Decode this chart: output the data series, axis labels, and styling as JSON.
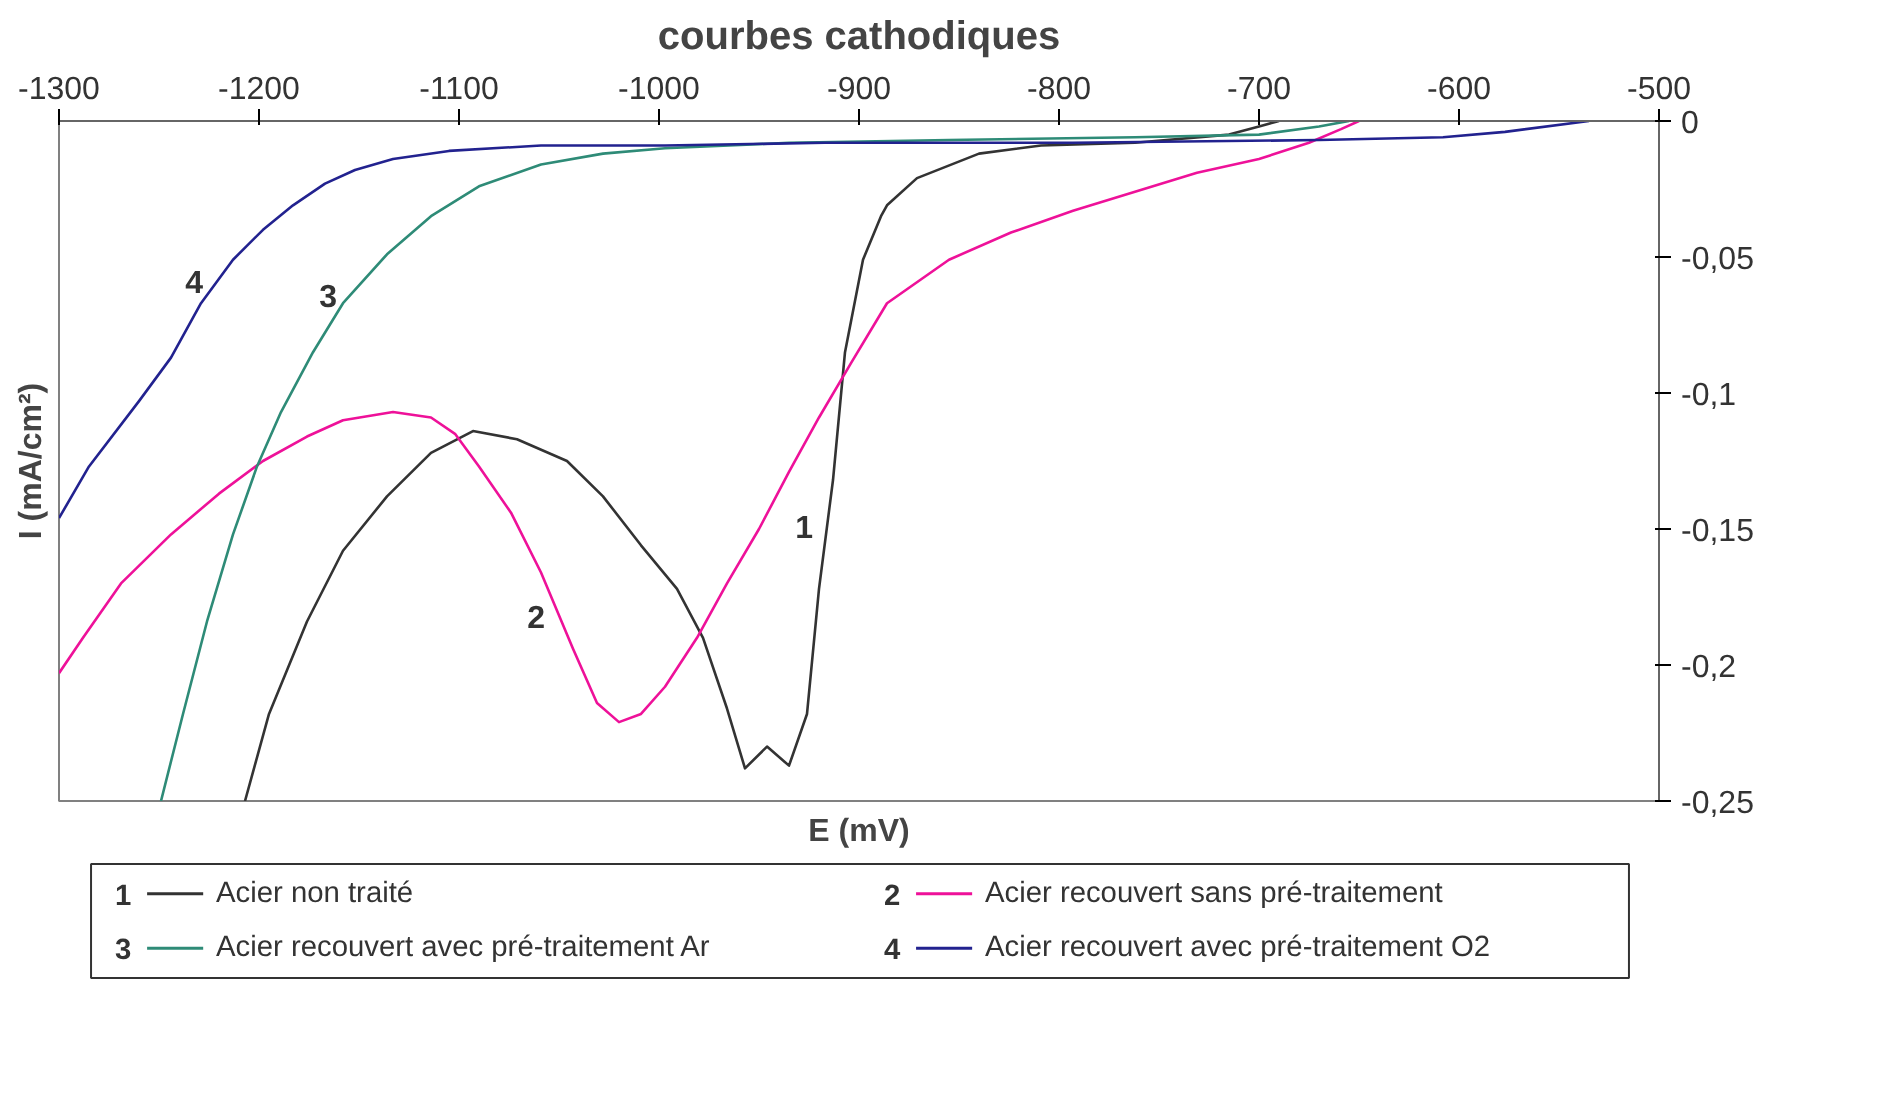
{
  "chart_data": {
    "type": "line",
    "title": "courbes cathodiques",
    "xlabel": "E (mV)",
    "ylabel": "I (mA/cm²)",
    "xlim": [
      -1300,
      -500
    ],
    "xticks": [
      -1300,
      -1200,
      -1100,
      -1000,
      -900,
      -800,
      -700,
      -600,
      -500
    ],
    "ylim": [
      -0.25,
      0
    ],
    "yticks": [
      0,
      {
        "value": -0.05,
        "label": "-0,05"
      },
      {
        "value": -0.1,
        "label": "-0,1"
      },
      {
        "value": -0.15,
        "label": "-0,15"
      },
      {
        "value": -0.2,
        "label": "-0,2"
      },
      {
        "value": -0.25,
        "label": "-0,25"
      }
    ],
    "grid": false,
    "legend": "bottom",
    "marker": "none",
    "line_style": "solid",
    "series": [
      {
        "name": "Acier non traité",
        "color": "#333333",
        "x": [
          -1207,
          -1195,
          -1176,
          -1158,
          -1136,
          -1114,
          -1093,
          -1071,
          -1046,
          -1028,
          -1009,
          -991,
          -978,
          -966,
          -957,
          -946,
          -935,
          -926,
          -920,
          -913,
          -907,
          -898,
          -889,
          -886,
          -871,
          -840,
          -809,
          -762,
          -715,
          -700,
          -690
        ],
        "values": [
          -0.25,
          -0.218,
          -0.184,
          -0.158,
          -0.138,
          -0.122,
          -0.114,
          -0.117,
          -0.125,
          -0.138,
          -0.156,
          -0.172,
          -0.19,
          -0.216,
          -0.238,
          -0.23,
          -0.237,
          -0.218,
          -0.172,
          -0.132,
          -0.085,
          -0.051,
          -0.035,
          -0.031,
          -0.021,
          -0.012,
          -0.009,
          -0.008,
          -0.005,
          -0.002,
          0
        ]
      },
      {
        "name": "Acier recouvert sans pré-traitement",
        "color": "#ee1199",
        "x": [
          -1300,
          -1288,
          -1269,
          -1244,
          -1220,
          -1198,
          -1176,
          -1158,
          -1133,
          -1114,
          -1102,
          -1090,
          -1074,
          -1059,
          -1043,
          -1031,
          -1020,
          -1009,
          -997,
          -981,
          -966,
          -950,
          -935,
          -920,
          -904,
          -886,
          -855,
          -824,
          -793,
          -762,
          -731,
          -700,
          -675,
          -659,
          -650
        ],
        "values": [
          -0.203,
          -0.19,
          -0.17,
          -0.152,
          -0.137,
          -0.125,
          -0.116,
          -0.11,
          -0.107,
          -0.109,
          -0.115,
          -0.127,
          -0.144,
          -0.166,
          -0.194,
          -0.214,
          -0.221,
          -0.218,
          -0.208,
          -0.19,
          -0.17,
          -0.15,
          -0.129,
          -0.109,
          -0.089,
          -0.067,
          -0.051,
          -0.041,
          -0.033,
          -0.026,
          -0.019,
          -0.014,
          -0.008,
          -0.003,
          0
        ]
      },
      {
        "name": "Acier recouvert avec pré-traitement Ar",
        "color": "#2e8b77",
        "x": [
          -1249,
          -1238,
          -1226,
          -1213,
          -1201,
          -1189,
          -1173,
          -1158,
          -1136,
          -1114,
          -1090,
          -1059,
          -1028,
          -997,
          -935,
          -855,
          -762,
          -700,
          -670,
          -655
        ],
        "values": [
          -0.25,
          -0.218,
          -0.184,
          -0.152,
          -0.127,
          -0.107,
          -0.085,
          -0.067,
          -0.049,
          -0.035,
          -0.024,
          -0.016,
          -0.012,
          -0.01,
          -0.008,
          -0.007,
          -0.006,
          -0.005,
          -0.002,
          0
        ]
      },
      {
        "name": "Acier recouvert avec pré-traitement O2",
        "color": "#22228f",
        "x": [
          -1300,
          -1285,
          -1260,
          -1244,
          -1229,
          -1213,
          -1198,
          -1183,
          -1167,
          -1152,
          -1133,
          -1105,
          -1059,
          -997,
          -917,
          -793,
          -670,
          -608,
          -577,
          -535
        ],
        "values": [
          -0.146,
          -0.127,
          -0.103,
          -0.087,
          -0.067,
          -0.051,
          -0.04,
          -0.031,
          -0.023,
          -0.018,
          -0.014,
          -0.011,
          -0.009,
          -0.009,
          -0.008,
          -0.008,
          -0.007,
          -0.006,
          -0.004,
          0
        ]
      }
    ],
    "annotations": [
      {
        "text": "1",
        "x": -916,
        "y": -0.149
      },
      {
        "text": "2",
        "x": -1050,
        "y": -0.182
      },
      {
        "text": "3",
        "x": -1154,
        "y": -0.064
      },
      {
        "text": "4",
        "x": -1221,
        "y": -0.059
      }
    ]
  }
}
